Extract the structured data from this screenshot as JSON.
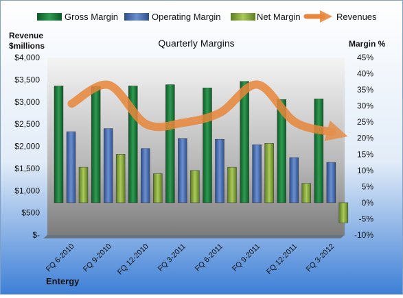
{
  "chart_data": {
    "type": "bar",
    "title": "Quarterly Margins",
    "caption": "Entergy",
    "left_axis": {
      "label_line1": "Revenue",
      "label_line2": "$millions",
      "ylim": [
        0,
        4000
      ],
      "ticks": [
        "$-",
        "$500",
        "$1,000",
        "$1,500",
        "$2,000",
        "$2,500",
        "$3,000",
        "$3,500",
        "$4,000"
      ]
    },
    "right_axis": {
      "label": "Margin %",
      "ylim": [
        -10,
        45
      ],
      "ticks": [
        "-10%",
        "-5%",
        "0%",
        "5%",
        "10%",
        "15%",
        "20%",
        "25%",
        "30%",
        "35%",
        "40%",
        "45%"
      ]
    },
    "categories": [
      "FQ 6-2010",
      "FQ 9-2010",
      "FQ 12-2010",
      "FQ 3-2011",
      "FQ 6-2011",
      "FQ 9-2011",
      "FQ 12-2011",
      "FQ 3-2012"
    ],
    "series": [
      {
        "name": "Gross Margin",
        "axis": "right",
        "kind": "bar",
        "color": "#1e7a3c",
        "values": [
          36.2,
          36.1,
          36.2,
          36.6,
          35.6,
          37.6,
          32.0,
          32.2
        ]
      },
      {
        "name": "Operating Margin",
        "axis": "right",
        "kind": "bar",
        "color": "#4a70b0",
        "values": [
          22.0,
          23.0,
          16.8,
          19.9,
          19.7,
          18.0,
          14.0,
          12.5
        ]
      },
      {
        "name": "Net Margin",
        "axis": "right",
        "kind": "bar",
        "color": "#8aac3e",
        "values": [
          11.0,
          15.0,
          9.0,
          10.0,
          11.0,
          18.4,
          6.0,
          -6.2
        ]
      },
      {
        "name": "Revenues",
        "axis": "left",
        "kind": "line",
        "color": "#e8873b",
        "values": [
          2960,
          3380,
          2500,
          2530,
          2760,
          3390,
          2550,
          2320
        ]
      }
    ],
    "legend_position": "top",
    "grid": false
  }
}
